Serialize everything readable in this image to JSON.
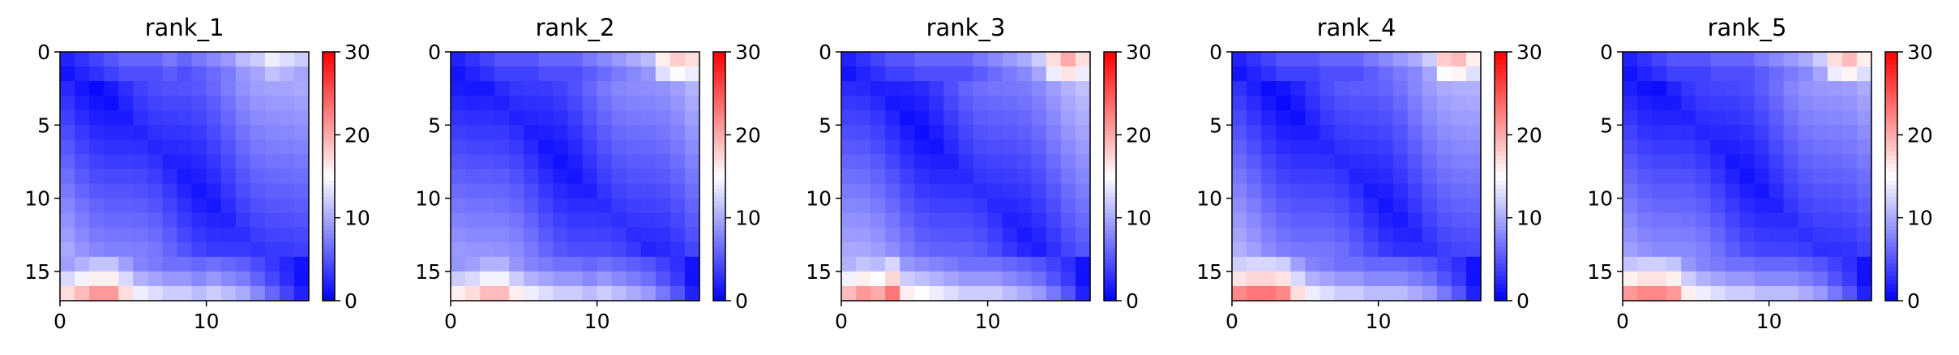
{
  "chart_data": [
    {
      "type": "heatmap",
      "title": "rank_1",
      "size": 17,
      "vmin": 0,
      "vmax": 30,
      "colormap": "bwr",
      "x_ticks": [
        0,
        10
      ],
      "y_ticks": [
        0,
        5,
        10,
        15
      ],
      "colorbar_ticks": [
        0,
        10,
        20,
        30
      ],
      "edge_rows": {
        "top": [
          2,
          3,
          4,
          5,
          6,
          6,
          6,
          7,
          6,
          7,
          8,
          9,
          11,
          12,
          14,
          13,
          12
        ],
        "bottom": [
          17,
          19,
          21,
          21,
          17,
          14,
          13,
          12,
          12,
          11,
          12,
          11,
          10,
          8,
          6,
          4,
          2
        ]
      }
    },
    {
      "type": "heatmap",
      "title": "rank_2",
      "size": 17,
      "vmin": 0,
      "vmax": 30,
      "colormap": "bwr",
      "x_ticks": [
        0,
        10
      ],
      "y_ticks": [
        0,
        5,
        10,
        15
      ],
      "colorbar_ticks": [
        0,
        10,
        20,
        30
      ],
      "edge_rows": {
        "top": [
          2,
          3,
          4,
          5,
          5,
          5,
          6,
          6,
          6,
          7,
          8,
          9,
          10,
          11,
          16,
          18,
          17
        ],
        "bottom": [
          16,
          17,
          19,
          19,
          16,
          14,
          13,
          12,
          12,
          11,
          12,
          11,
          10,
          9,
          7,
          5,
          2
        ]
      }
    },
    {
      "type": "heatmap",
      "title": "rank_3",
      "size": 17,
      "vmin": 0,
      "vmax": 30,
      "colormap": "bwr",
      "x_ticks": [
        0,
        10
      ],
      "y_ticks": [
        0,
        5,
        10,
        15
      ],
      "colorbar_ticks": [
        0,
        10,
        20,
        30
      ],
      "edge_rows": {
        "top": [
          2,
          3,
          4,
          5,
          5,
          6,
          6,
          6,
          6,
          7,
          8,
          9,
          10,
          12,
          17,
          20,
          17
        ],
        "bottom": [
          19,
          21,
          20,
          23,
          16,
          15,
          14,
          13,
          12,
          12,
          12,
          11,
          10,
          9,
          7,
          5,
          2
        ]
      }
    },
    {
      "type": "heatmap",
      "title": "rank_4",
      "size": 17,
      "vmin": 0,
      "vmax": 30,
      "colormap": "bwr",
      "x_ticks": [
        0,
        10
      ],
      "y_ticks": [
        0,
        5,
        10,
        15
      ],
      "colorbar_ticks": [
        0,
        10,
        20,
        30
      ],
      "edge_rows": {
        "top": [
          2,
          3,
          4,
          5,
          5,
          5,
          6,
          6,
          6,
          7,
          8,
          9,
          10,
          12,
          18,
          19,
          16
        ],
        "bottom": [
          22,
          23,
          23,
          22,
          17,
          14,
          13,
          12,
          12,
          11,
          11,
          11,
          10,
          9,
          7,
          5,
          2
        ]
      }
    },
    {
      "type": "heatmap",
      "title": "rank_5",
      "size": 17,
      "vmin": 0,
      "vmax": 30,
      "colormap": "bwr",
      "x_ticks": [
        0,
        10
      ],
      "y_ticks": [
        0,
        5,
        10,
        15
      ],
      "colorbar_ticks": [
        0,
        10,
        20,
        30
      ],
      "edge_rows": {
        "top": [
          2,
          3,
          4,
          5,
          5,
          5,
          6,
          6,
          6,
          7,
          8,
          9,
          10,
          12,
          17,
          19,
          16
        ],
        "bottom": [
          21,
          22,
          22,
          21,
          16,
          14,
          13,
          12,
          12,
          11,
          11,
          11,
          10,
          9,
          7,
          5,
          2
        ]
      }
    }
  ]
}
